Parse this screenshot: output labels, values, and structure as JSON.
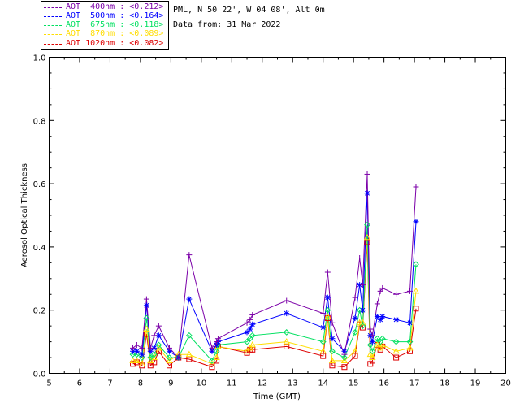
{
  "header": {
    "site": "PML, N 50 22', W 04 08', Alt 0m",
    "data_from": "Data from: 31 Mar 2022"
  },
  "colors": {
    "aot400": "#800080",
    "aot500": "#0000ff",
    "aot675": "#00ff99",
    "aot870": "#ffcc00",
    "aot1020": "#ff0000"
  },
  "legend": [
    {
      "label": "AOT  400nm : <0.212>",
      "color": "#7b00a8",
      "marker": "plus-icon"
    },
    {
      "label": "AOT  500nm : <0.164>",
      "color": "#0000ff",
      "marker": "asterisk-icon"
    },
    {
      "label": "AOT  675nm : <0.118>",
      "color": "#00e060",
      "marker": "diamond-icon"
    },
    {
      "label": "AOT  870nm : <0.089>",
      "color": "#ffdd00",
      "marker": "triangle-icon"
    },
    {
      "label": "AOT 1020nm : <0.082>",
      "color": "#dd0000",
      "marker": "square-icon"
    }
  ],
  "chart_data": {
    "type": "line",
    "title": "",
    "xlabel": "Time (GMT)",
    "ylabel": "Aerosol Optical Thickness",
    "xlim": [
      5,
      20
    ],
    "ylim": [
      0.0,
      1.0
    ],
    "x_ticks": [
      "5",
      "6",
      "7",
      "8",
      "9",
      "10",
      "11",
      "12",
      "13",
      "14",
      "15",
      "16",
      "17",
      "18",
      "19",
      "20"
    ],
    "y_ticks": [
      "0.0",
      "0.2",
      "0.4",
      "0.6",
      "0.8",
      "1.0"
    ],
    "x": [
      7.75,
      7.88,
      8.05,
      8.2,
      8.33,
      8.45,
      8.6,
      8.95,
      9.25,
      9.6,
      10.35,
      10.5,
      10.55,
      11.5,
      11.6,
      11.68,
      12.8,
      14.0,
      14.15,
      14.3,
      14.7,
      15.05,
      15.2,
      15.3,
      15.45,
      15.55,
      15.62,
      15.78,
      15.88,
      15.95,
      16.4,
      16.85,
      17.05
    ],
    "series": [
      {
        "name": "AOT 400nm",
        "values": [
          0.08,
          0.09,
          0.08,
          0.235,
          0.08,
          0.12,
          0.15,
          0.08,
          0.05,
          0.375,
          0.08,
          0.1,
          0.11,
          0.16,
          0.17,
          0.185,
          0.23,
          0.19,
          0.32,
          0.16,
          0.06,
          0.24,
          0.365,
          0.28,
          0.63,
          0.14,
          0.12,
          0.22,
          0.26,
          0.27,
          0.25,
          0.26,
          0.59
        ]
      },
      {
        "name": "AOT 500nm",
        "values": [
          0.07,
          0.07,
          0.06,
          0.215,
          0.07,
          0.08,
          0.12,
          0.07,
          0.05,
          0.235,
          0.07,
          0.09,
          0.1,
          0.13,
          0.14,
          0.155,
          0.19,
          0.145,
          0.24,
          0.11,
          0.07,
          0.175,
          0.28,
          0.2,
          0.57,
          0.12,
          0.1,
          0.18,
          0.17,
          0.18,
          0.17,
          0.16,
          0.48
        ]
      },
      {
        "name": "AOT 675nm",
        "values": [
          0.06,
          0.06,
          0.05,
          0.175,
          0.05,
          0.06,
          0.09,
          0.05,
          0.05,
          0.12,
          0.04,
          0.07,
          0.09,
          0.1,
          0.11,
          0.12,
          0.13,
          0.1,
          0.2,
          0.07,
          0.05,
          0.13,
          0.2,
          0.15,
          0.47,
          0.09,
          0.07,
          0.11,
          0.1,
          0.11,
          0.1,
          0.1,
          0.345
        ]
      },
      {
        "name": "AOT 870nm",
        "values": [
          0.04,
          0.04,
          0.03,
          0.14,
          0.04,
          0.05,
          0.08,
          0.04,
          0.06,
          0.06,
          0.03,
          0.05,
          0.085,
          0.07,
          0.08,
          0.09,
          0.1,
          0.07,
          0.18,
          0.04,
          0.04,
          0.07,
          0.16,
          0.16,
          0.43,
          0.06,
          0.05,
          0.09,
          0.08,
          0.09,
          0.07,
          0.08,
          0.26
        ]
      },
      {
        "name": "AOT 1020nm",
        "values": [
          0.03,
          0.035,
          0.025,
          0.125,
          0.025,
          0.035,
          0.07,
          0.025,
          0.05,
          0.045,
          0.02,
          0.04,
          0.085,
          0.065,
          0.075,
          0.075,
          0.085,
          0.055,
          0.175,
          0.025,
          0.02,
          0.055,
          0.155,
          0.145,
          0.415,
          0.03,
          0.04,
          0.09,
          0.075,
          0.085,
          0.05,
          0.07,
          0.205
        ]
      }
    ]
  }
}
